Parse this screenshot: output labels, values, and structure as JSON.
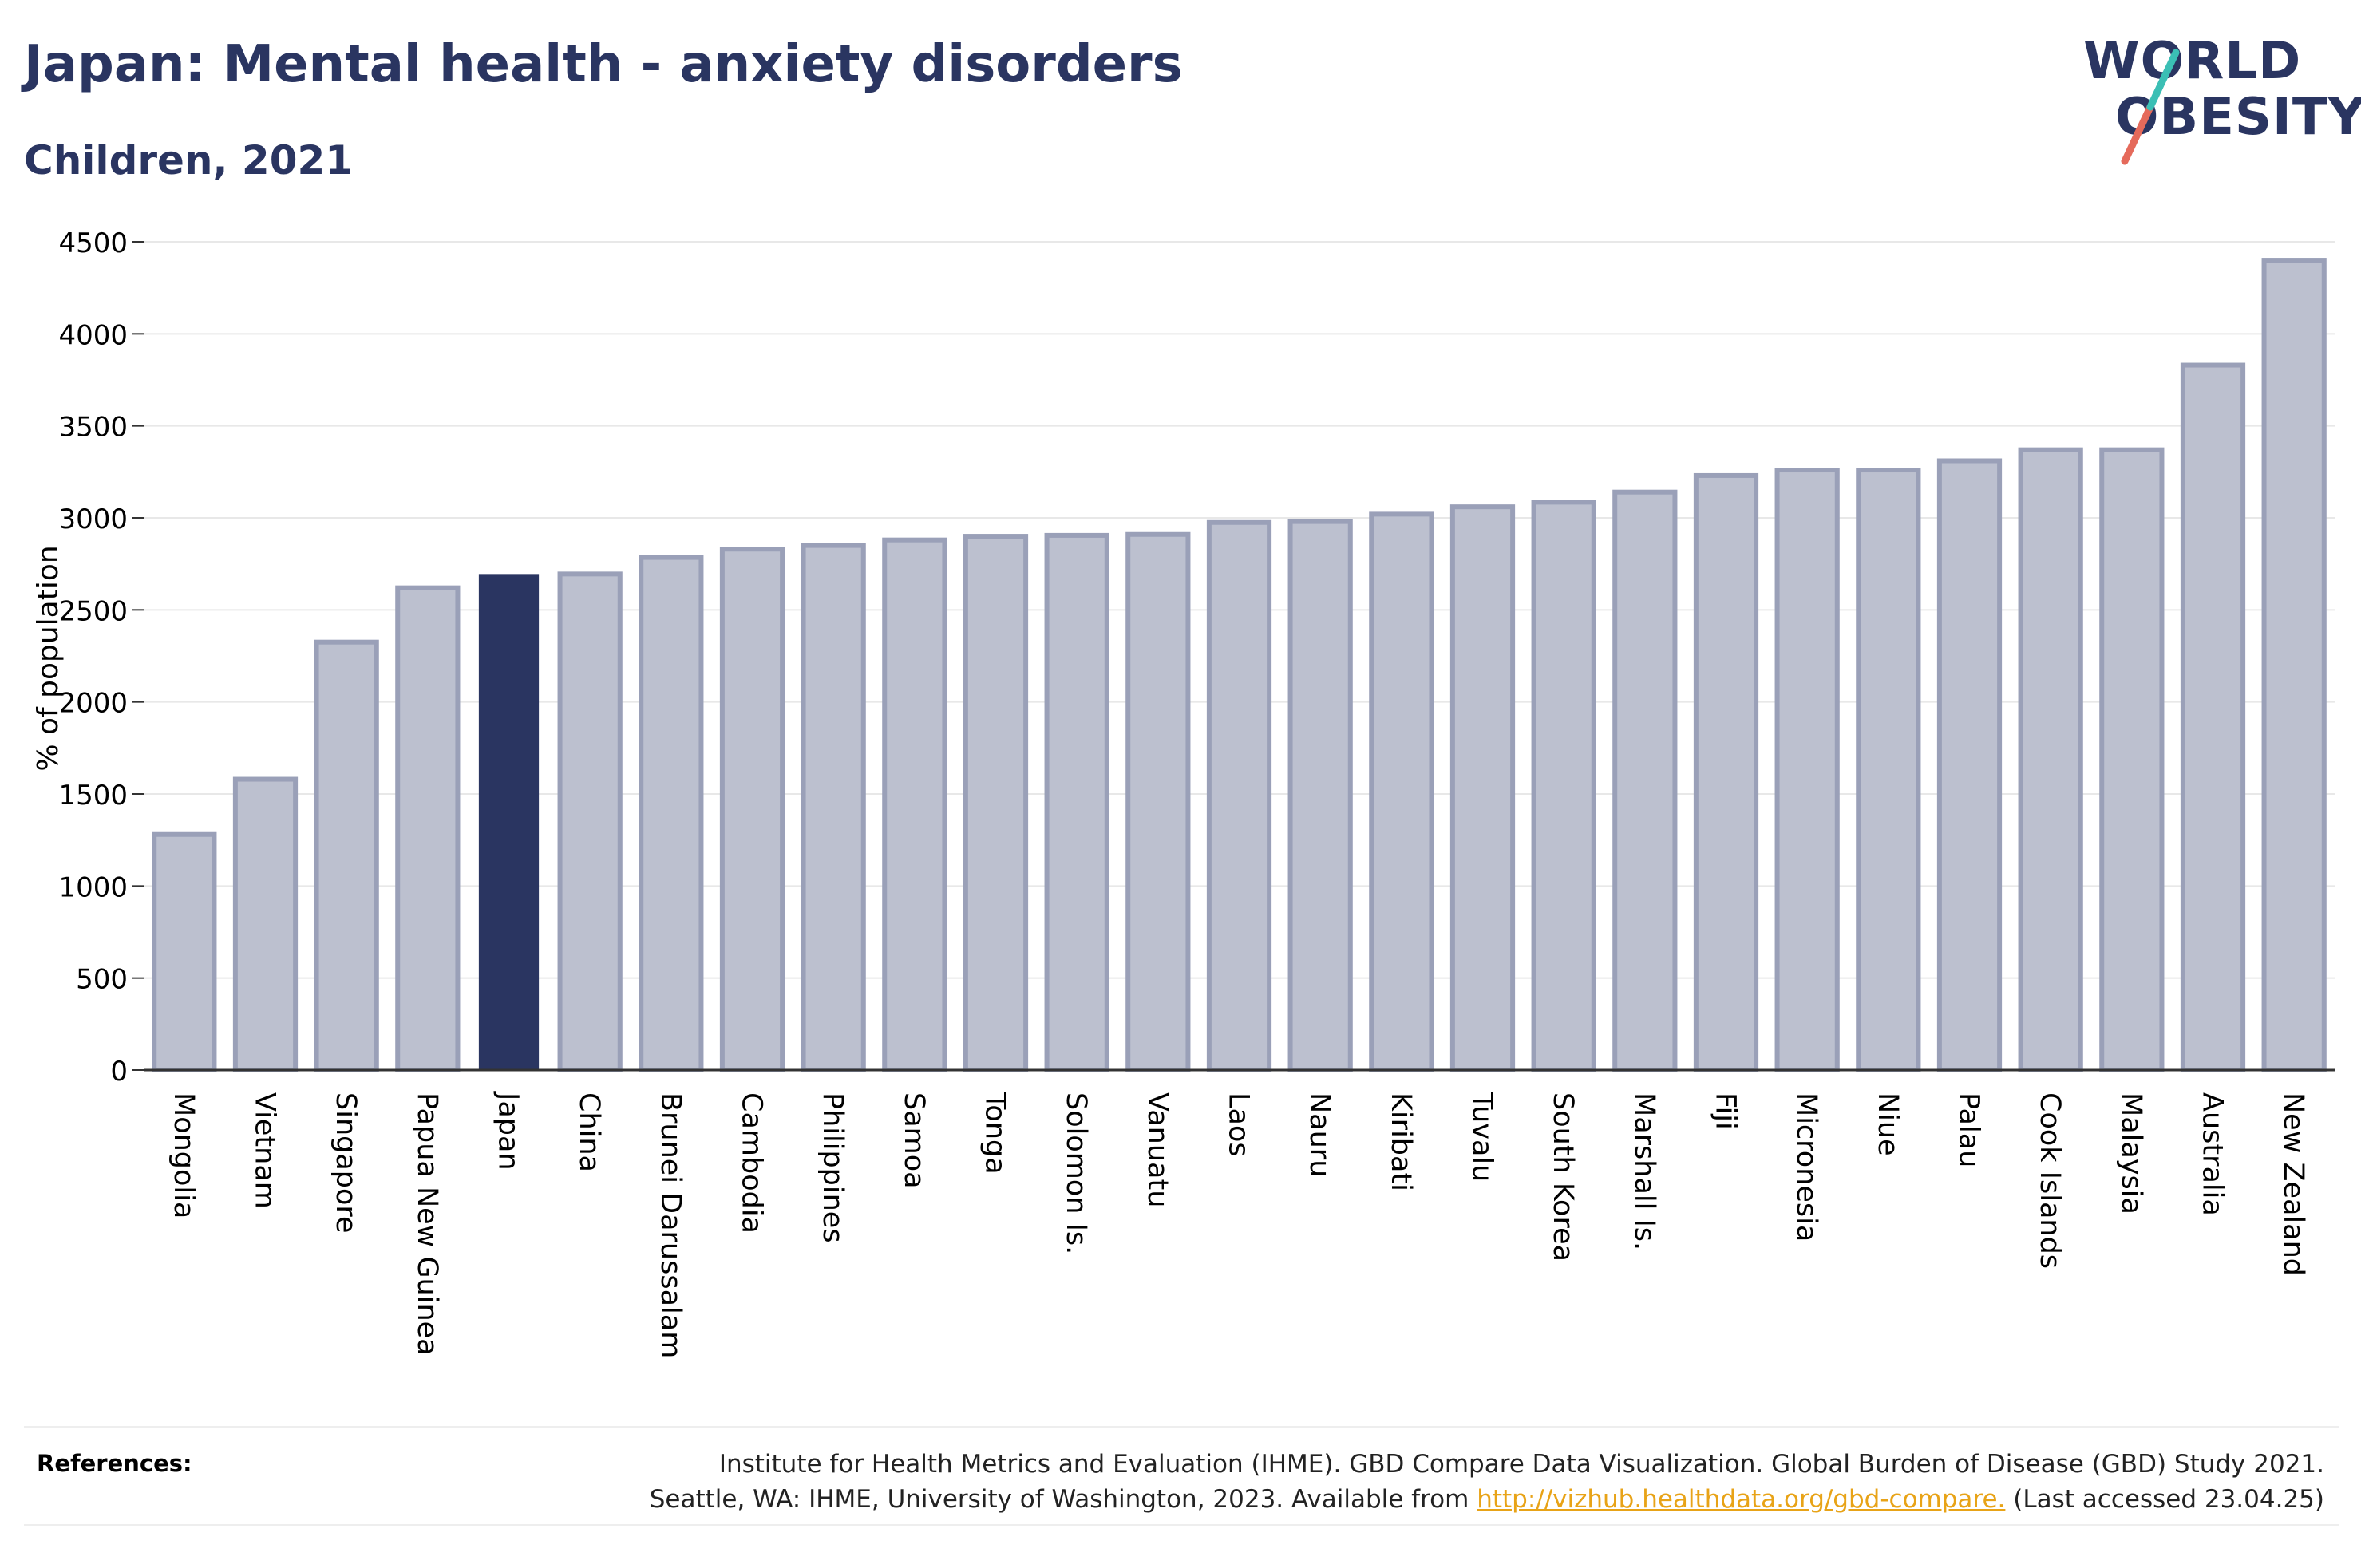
{
  "title": "Japan: Mental health - anxiety disorders",
  "subtitle": "Children, 2021",
  "logo": {
    "line1": "WORLD",
    "line2": "OBESITY"
  },
  "colors": {
    "highlight": "#2a3561",
    "bar_fill": "#bcc0cf",
    "bar_stroke": "#9aa0b8",
    "logo_teal": "#3bbfb5",
    "logo_coral": "#e56a5b",
    "link": "#e8a317"
  },
  "references": {
    "label": "References:",
    "line1": "Institute for Health Metrics and Evaluation (IHME). GBD Compare Data Visualization. Global Burden of Disease (GBD) Study 2021.",
    "line2_prefix": "Seattle, WA: IHME, University of Washington, 2023. Available from ",
    "link_text": "http://vizhub.healthdata.org/gbd-compare.",
    "line2_suffix": " (Last accessed 23.04.25)"
  },
  "chart_data": {
    "type": "bar",
    "title": "Japan: Mental health - anxiety disorders",
    "subtitle": "Children, 2021",
    "ylabel": "% of population",
    "xlabel": "",
    "ylim": [
      0,
      4500
    ],
    "yticks": [
      0,
      500,
      1000,
      1500,
      2000,
      2500,
      3000,
      3500,
      4000,
      4500
    ],
    "grid": true,
    "highlight": "Japan",
    "categories": [
      "Mongolia",
      "Vietnam",
      "Singapore",
      "Papua New Guinea",
      "Japan",
      "China",
      "Brunei Darussalam",
      "Cambodia",
      "Philippines",
      "Samoa",
      "Tonga",
      "Solomon Is.",
      "Vanuatu",
      "Laos",
      "Nauru",
      "Kiribati",
      "Tuvalu",
      "South Korea",
      "Marshall Is.",
      "Fiji",
      "Micronesia",
      "Niue",
      "Palau",
      "Cook Islands",
      "Malaysia",
      "Australia",
      "New Zealand"
    ],
    "values": [
      1280,
      1580,
      2325,
      2620,
      2695,
      2695,
      2785,
      2830,
      2850,
      2880,
      2900,
      2905,
      2910,
      2975,
      2980,
      3020,
      3060,
      3085,
      3140,
      3230,
      3260,
      3260,
      3310,
      3370,
      3370,
      3830,
      4400
    ]
  }
}
